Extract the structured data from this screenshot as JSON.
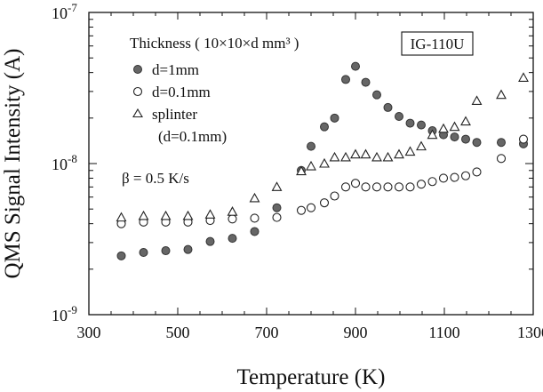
{
  "chart_data": {
    "type": "scatter",
    "xlabel": "Temperature (K)",
    "ylabel": "QMS Signal Intensity (A)",
    "xlim": [
      300,
      1300
    ],
    "ylim": [
      1e-09,
      1e-07
    ],
    "yscale": "log",
    "grid": false,
    "x_ticks": [
      300,
      500,
      700,
      900,
      1100,
      1300
    ],
    "x_tick_labels": [
      "300",
      "500",
      "700",
      "900",
      "1100",
      "1300"
    ],
    "y_tick_labels": [
      {
        "base": "10",
        "exp": "-7",
        "value": 1e-07
      },
      {
        "base": "10",
        "exp": "-8",
        "value": 1e-08
      },
      {
        "base": "10",
        "exp": "-9",
        "value": 1e-09
      }
    ],
    "sample_label": "IG-110U",
    "legend_title": "Thickness ( 10×10×d mm³ )",
    "beta_text": "β = 0.5 K/s",
    "legend_position": "top-left",
    "series": [
      {
        "name": "d=1mm",
        "marker": "filled-circle",
        "color": "#666666",
        "points": [
          [
            373,
            2.45e-09
          ],
          [
            423,
            2.58e-09
          ],
          [
            473,
            2.65e-09
          ],
          [
            523,
            2.7e-09
          ],
          [
            573,
            3.05e-09
          ],
          [
            623,
            3.2e-09
          ],
          [
            673,
            3.55e-09
          ],
          [
            723,
            5.1e-09
          ],
          [
            778,
            9e-09
          ],
          [
            800,
            1.3e-08
          ],
          [
            830,
            1.75e-08
          ],
          [
            853,
            2e-08
          ],
          [
            878,
            3.6e-08
          ],
          [
            900,
            4.4e-08
          ],
          [
            923,
            3.45e-08
          ],
          [
            948,
            2.85e-08
          ],
          [
            973,
            2.35e-08
          ],
          [
            998,
            2.05e-08
          ],
          [
            1023,
            1.85e-08
          ],
          [
            1048,
            1.8e-08
          ],
          [
            1073,
            1.65e-08
          ],
          [
            1098,
            1.55e-08
          ],
          [
            1123,
            1.5e-08
          ],
          [
            1148,
            1.45e-08
          ],
          [
            1173,
            1.38e-08
          ],
          [
            1228,
            1.38e-08
          ],
          [
            1278,
            1.35e-08
          ]
        ]
      },
      {
        "name": "d=0.1mm",
        "marker": "open-circle",
        "color": "#222222",
        "points": [
          [
            373,
            4e-09
          ],
          [
            423,
            4.1e-09
          ],
          [
            473,
            4.1e-09
          ],
          [
            523,
            4.1e-09
          ],
          [
            573,
            4.2e-09
          ],
          [
            623,
            4.3e-09
          ],
          [
            673,
            4.35e-09
          ],
          [
            723,
            4.4e-09
          ],
          [
            778,
            4.9e-09
          ],
          [
            800,
            5.1e-09
          ],
          [
            830,
            5.5e-09
          ],
          [
            853,
            6.1e-09
          ],
          [
            878,
            7e-09
          ],
          [
            900,
            7.4e-09
          ],
          [
            923,
            7e-09
          ],
          [
            948,
            7e-09
          ],
          [
            973,
            7e-09
          ],
          [
            998,
            7e-09
          ],
          [
            1023,
            7e-09
          ],
          [
            1048,
            7.3e-09
          ],
          [
            1073,
            7.6e-09
          ],
          [
            1098,
            8e-09
          ],
          [
            1123,
            8.1e-09
          ],
          [
            1148,
            8.3e-09
          ],
          [
            1173,
            8.8e-09
          ],
          [
            1228,
            1.08e-08
          ],
          [
            1278,
            1.45e-08
          ]
        ]
      },
      {
        "name": "splinter",
        "marker": "open-triangle",
        "color": "#222222",
        "points": [
          [
            373,
            4.4e-09
          ],
          [
            423,
            4.5e-09
          ],
          [
            473,
            4.5e-09
          ],
          [
            523,
            4.5e-09
          ],
          [
            573,
            4.6e-09
          ],
          [
            623,
            4.8e-09
          ],
          [
            673,
            5.9e-09
          ],
          [
            723,
            7e-09
          ],
          [
            778,
            8.9e-09
          ],
          [
            800,
            9.6e-09
          ],
          [
            830,
            1e-08
          ],
          [
            853,
            1.1e-08
          ],
          [
            878,
            1.1e-08
          ],
          [
            900,
            1.15e-08
          ],
          [
            923,
            1.15e-08
          ],
          [
            948,
            1.1e-08
          ],
          [
            973,
            1.1e-08
          ],
          [
            998,
            1.15e-08
          ],
          [
            1023,
            1.2e-08
          ],
          [
            1048,
            1.3e-08
          ],
          [
            1073,
            1.55e-08
          ],
          [
            1098,
            1.7e-08
          ],
          [
            1123,
            1.75e-08
          ],
          [
            1148,
            1.9e-08
          ],
          [
            1173,
            2.6e-08
          ],
          [
            1228,
            2.85e-08
          ],
          [
            1278,
            3.7e-08
          ]
        ]
      }
    ],
    "series_note": "(d=0.1mm)"
  }
}
